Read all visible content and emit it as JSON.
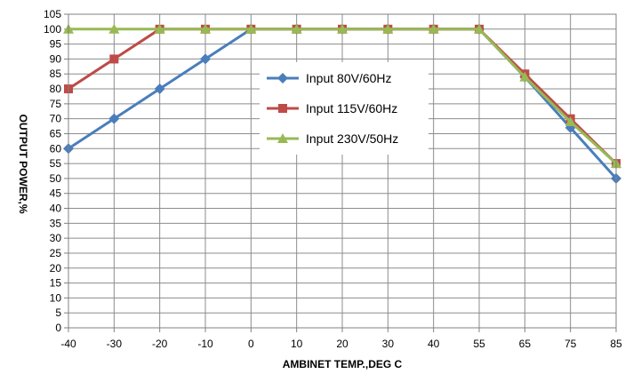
{
  "chart_data": {
    "type": "line",
    "xlabel": "AMBINET TEMP.,DEG C",
    "ylabel": "OUTPUT  POWER,%",
    "x": [
      -40,
      -30,
      -20,
      -10,
      0,
      10,
      20,
      30,
      40,
      55,
      65,
      75,
      85
    ],
    "ylim": [
      0,
      105
    ],
    "ytick_step": 5,
    "grid": true,
    "legend_position": "center",
    "series": [
      {
        "name": "Input 80V/60Hz",
        "color": "#4a7ebb",
        "marker": "diamond",
        "values": [
          60,
          70,
          80,
          90,
          100,
          100,
          100,
          100,
          100,
          100,
          84,
          67,
          50
        ]
      },
      {
        "name": "Input 115V/60Hz",
        "color": "#be4b48",
        "marker": "square",
        "values": [
          80,
          90,
          100,
          100,
          100,
          100,
          100,
          100,
          100,
          100,
          85,
          70,
          55
        ]
      },
      {
        "name": "Input 230V/50Hz",
        "color": "#98b954",
        "marker": "triangle",
        "values": [
          100,
          100,
          100,
          100,
          100,
          100,
          100,
          100,
          100,
          100,
          84,
          69,
          55
        ]
      }
    ]
  }
}
